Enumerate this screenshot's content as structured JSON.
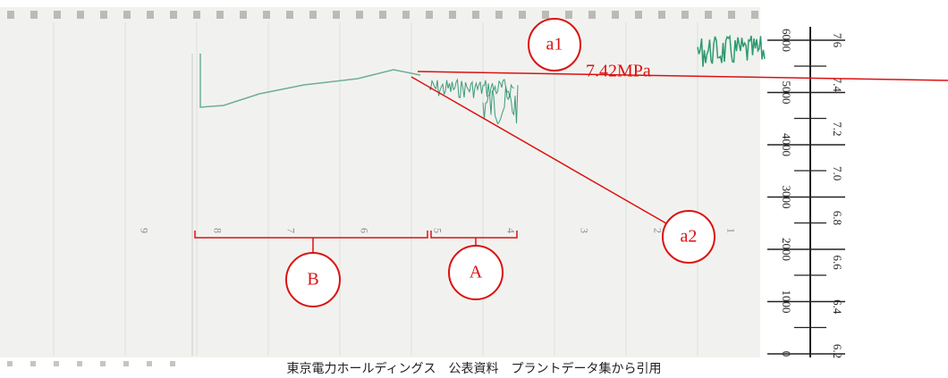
{
  "annotations": {
    "a1": "a1",
    "pressure": "7.42MPa",
    "a2": "a2",
    "A": "A",
    "B": "B"
  },
  "scale": {
    "left_labels": [
      "6000",
      "5000",
      "4000",
      "3000",
      "2000",
      "1000",
      "0"
    ],
    "right_labels": [
      "7.6",
      "7.4",
      "7.2",
      "7.0",
      "6.8",
      "6.6",
      "6.4",
      "6.2"
    ]
  },
  "chart_paper": {
    "hour_marks": [
      "9",
      "8",
      "7",
      "6",
      "5",
      "4",
      "3",
      "2",
      "1"
    ]
  },
  "caption": "東京電力ホールディングス　公表資料　プラントデータ集から引用"
}
